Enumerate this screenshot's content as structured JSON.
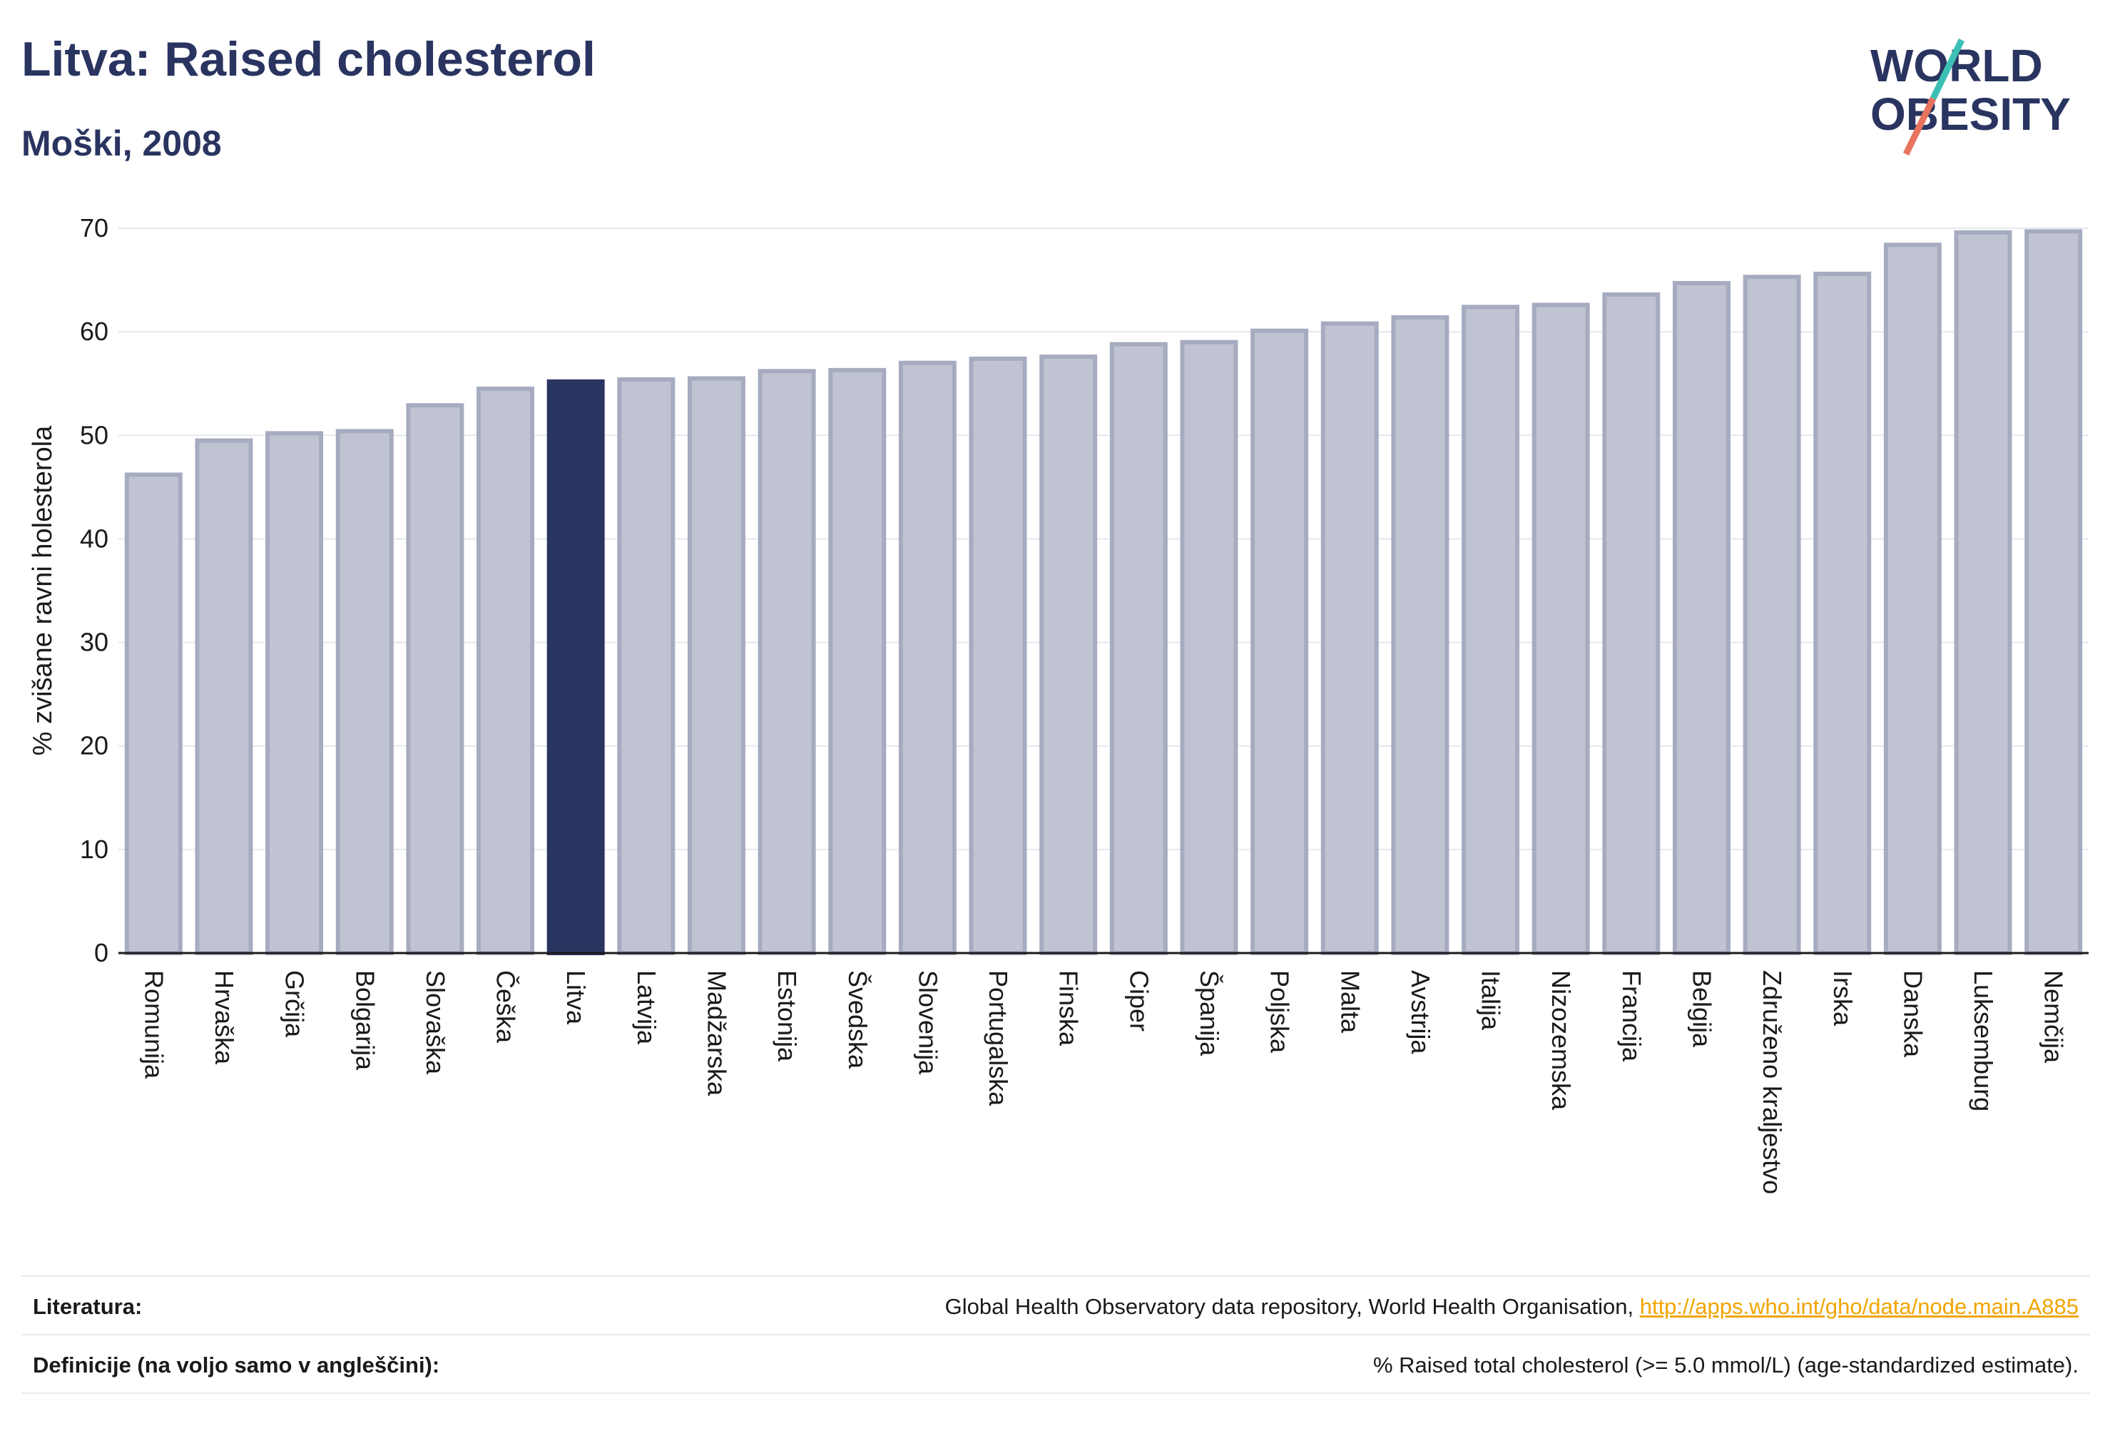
{
  "header": {
    "title": "Litva: Raised cholesterol",
    "subtitle": "Moški, 2008"
  },
  "logo": {
    "line1": "WORLD",
    "line2": "OBESITY"
  },
  "colors": {
    "bar": "#c0c4d2",
    "bar_stroke": "#a6abc0",
    "highlight": "#2a3460",
    "text": "#2a3460",
    "slash_teal": "#3cbfb4",
    "slash_coral": "#e8735f",
    "link": "#f0a500"
  },
  "chart_data": {
    "type": "bar",
    "title": "Litva: Raised cholesterol",
    "subtitle": "Moški, 2008",
    "ylabel": "% zvišane ravni holesterola",
    "xlabel": "",
    "ylim": [
      0,
      70
    ],
    "yticks": [
      0,
      10,
      20,
      30,
      40,
      50,
      60,
      70
    ],
    "grid": true,
    "highlight": "Litva",
    "categories": [
      "Romunija",
      "Hrvaška",
      "Grčija",
      "Bolgarija",
      "Slovaška",
      "Češka",
      "Litva",
      "Latvija",
      "Madžarska",
      "Estonija",
      "Švedska",
      "Slovenija",
      "Portugalska",
      "Finska",
      "Ciper",
      "Španija",
      "Poljska",
      "Malta",
      "Avstrija",
      "Italija",
      "Nizozemska",
      "Francija",
      "Belgija",
      "Združeno kraljestvo",
      "Irska",
      "Danska",
      "Luksemburg",
      "Nemčija"
    ],
    "values": [
      46.2,
      49.5,
      50.2,
      50.4,
      52.9,
      54.5,
      55.2,
      55.4,
      55.5,
      56.2,
      56.3,
      57.0,
      57.4,
      57.6,
      58.8,
      59.0,
      60.1,
      60.8,
      61.4,
      62.4,
      62.6,
      63.6,
      64.7,
      65.3,
      65.6,
      68.4,
      69.6,
      69.7
    ]
  },
  "footer": {
    "source_label": "Literatura:",
    "source_text": "Global Health Observatory data repository, World Health Organisation,",
    "source_link": "http://apps.who.int/gho/data/node.main.A885",
    "definition_label": "Definicije (na voljo samo v angleščini):",
    "definition_text": "% Raised total cholesterol (>= 5.0 mmol/L) (age-standardized estimate)."
  }
}
